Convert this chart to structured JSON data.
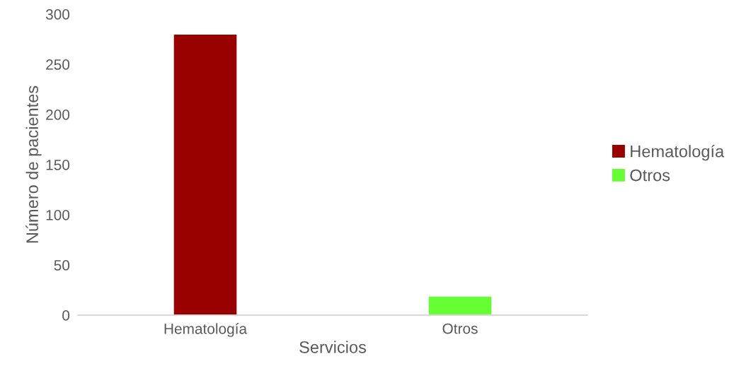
{
  "chart_data": {
    "type": "bar",
    "xlabel": "Servicios",
    "ylabel": "Número de pacientes",
    "categories": [
      "Hematología",
      "Otros"
    ],
    "series": [
      {
        "name": "Hematología",
        "color": "#990000",
        "values": [
          280,
          null
        ]
      },
      {
        "name": "Otros",
        "color": "#66ff33",
        "values": [
          null,
          19
        ]
      }
    ],
    "ylim": [
      0,
      300
    ],
    "yticks": [
      0,
      50,
      100,
      150,
      200,
      250,
      300
    ],
    "grid": false,
    "legend": "right"
  }
}
